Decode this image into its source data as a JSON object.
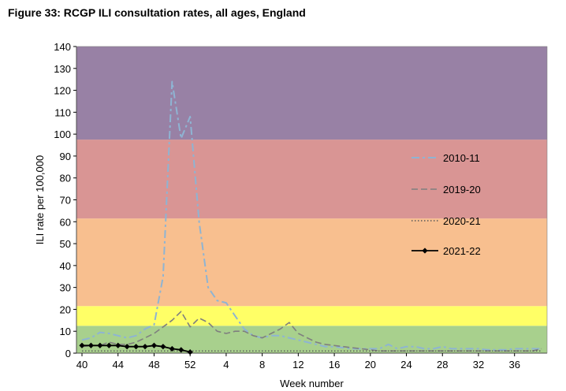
{
  "figure": {
    "title": "Figure 33: RCGP ILI consultation rates, all ages, England"
  },
  "chart_data": {
    "type": "line",
    "title": "Figure 33: RCGP ILI consultation rates, all ages, England",
    "xlabel": "Week number",
    "ylabel": "ILI rate per 100,000",
    "ylim": [
      0,
      140
    ],
    "y_ticks": [
      0,
      10,
      20,
      30,
      40,
      50,
      60,
      70,
      80,
      90,
      100,
      110,
      120,
      130,
      140
    ],
    "x_tick_labels": [
      "40",
      "44",
      "48",
      "52",
      "4",
      "8",
      "12",
      "16",
      "20",
      "24",
      "28",
      "32",
      "36"
    ],
    "x_tick_index": [
      0,
      4,
      8,
      12,
      16,
      20,
      24,
      28,
      32,
      36,
      40,
      44,
      48
    ],
    "x_count": 52,
    "threshold_bands": [
      {
        "from": 0,
        "to": 12.5,
        "color": "#a8d08d"
      },
      {
        "from": 12.5,
        "to": 21.5,
        "color": "#ffff66"
      },
      {
        "from": 21.5,
        "to": 61.5,
        "color": "#f8bf8f"
      },
      {
        "from": 61.5,
        "to": 97.5,
        "color": "#d99594"
      },
      {
        "from": 97.5,
        "to": 140,
        "color": "#9881a5"
      }
    ],
    "series": [
      {
        "name": "2010-11",
        "style": "dashdot",
        "color": "#8eb4d3",
        "values": [
          6,
          7,
          9.5,
          9,
          8,
          7,
          8,
          11,
          13,
          35,
          124,
          98,
          108,
          60,
          30,
          24,
          23,
          17,
          11,
          8,
          7,
          8,
          8,
          7,
          6,
          5,
          4,
          3,
          3,
          2.5,
          2,
          2,
          2,
          2,
          4,
          2,
          3,
          3,
          2,
          2,
          3,
          2,
          2,
          2,
          2,
          1.5,
          1.5,
          1.5,
          2,
          2,
          2,
          2
        ]
      },
      {
        "name": "2019-20",
        "style": "dashed",
        "color": "#7f7f7f",
        "values": [
          3,
          3.5,
          3.5,
          5,
          4,
          4,
          5,
          7,
          9,
          12,
          15,
          19,
          12,
          16,
          14,
          10,
          9,
          10,
          10,
          8,
          7,
          9,
          11,
          14,
          9,
          7,
          5,
          4,
          3.5,
          3,
          2.5,
          2,
          1.5,
          1,
          1,
          1,
          1,
          1,
          1,
          1,
          1,
          1,
          1,
          1,
          1,
          1,
          1,
          1,
          1,
          1,
          1,
          2
        ]
      },
      {
        "name": "2020-21",
        "style": "dotted",
        "color": "#595959",
        "values": [
          1,
          1,
          1,
          1,
          1,
          1,
          1,
          1,
          1,
          1,
          1,
          1,
          1,
          1,
          1,
          1,
          1,
          1,
          1,
          1,
          1,
          1,
          1,
          1,
          1,
          1,
          1,
          1,
          1,
          1,
          1,
          1,
          1,
          1,
          1,
          1,
          1,
          1,
          1,
          1,
          1,
          1,
          1,
          1,
          1,
          1,
          1,
          1,
          1,
          1,
          1,
          1
        ]
      },
      {
        "name": "2021-22",
        "style": "solid-diamond",
        "color": "#000000",
        "values": [
          3.5,
          3.5,
          3.5,
          3.5,
          3.5,
          3,
          3,
          3,
          3.5,
          3,
          2,
          1.5,
          0.5
        ]
      }
    ],
    "legend_position": "right"
  }
}
